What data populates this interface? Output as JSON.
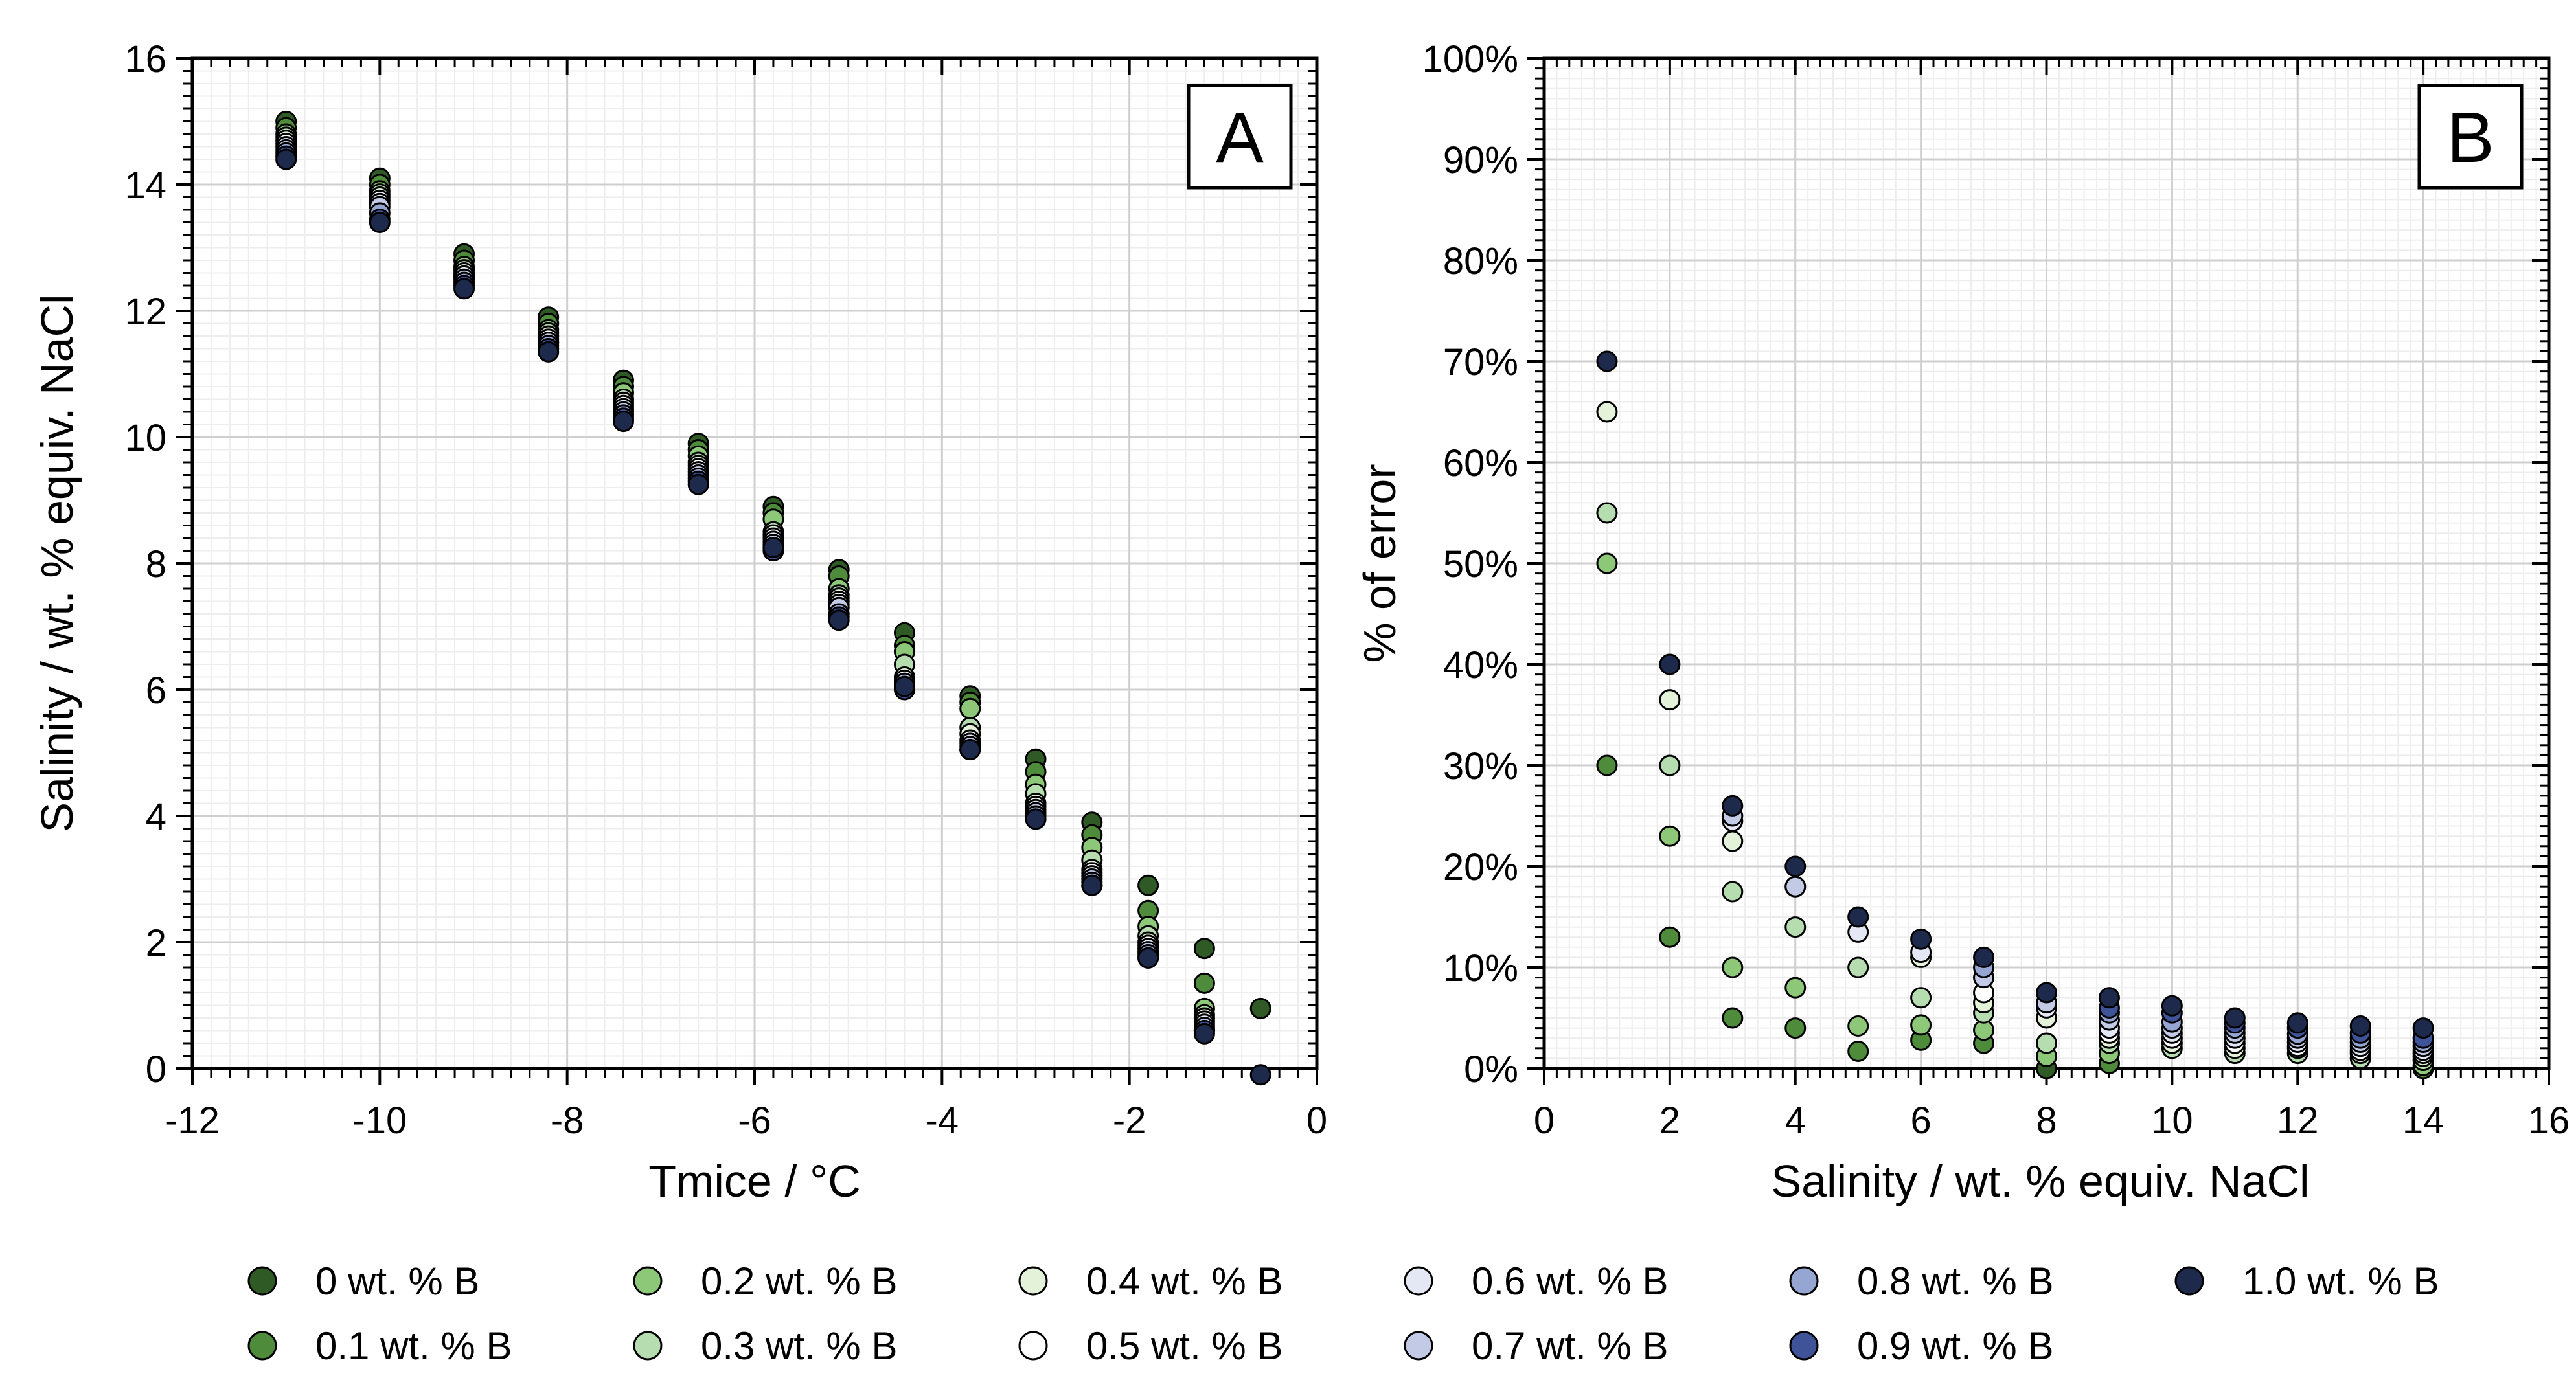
{
  "colors": {
    "0 wt. % B": "#2f5a26",
    "0.1 wt. % B": "#4e8b3a",
    "0.2 wt. % B": "#8cc878",
    "0.3 wt. % B": "#b6ddb0",
    "0.4 wt. % B": "#e3f2d9",
    "0.5 wt. % B": "#ffffff",
    "0.6 wt. % B": "#e4e8f4",
    "0.7 wt. % B": "#c2cae6",
    "0.8 wt. % B": "#96a6d2",
    "0.9 wt. % B": "#3e5398",
    "1.0 wt. % B": "#1e2a4c"
  },
  "legend": {
    "columns": [
      [
        "0 wt. % B",
        "0.1 wt. % B"
      ],
      [
        "0.2 wt. % B",
        "0.3 wt. % B"
      ],
      [
        "0.4 wt. % B",
        "0.5 wt. % B"
      ],
      [
        "0.6 wt. % B",
        "0.7 wt. % B"
      ],
      [
        "0.8 wt. % B",
        "0.9 wt. % B"
      ],
      [
        "1.0 wt. % B"
      ]
    ]
  },
  "chart_data": [
    {
      "type": "scatter",
      "panel": "A",
      "title": "",
      "xlabel": "Tmice / °C",
      "ylabel": "Salinity / wt. % equiv. NaCl",
      "xlim": [
        -12,
        0
      ],
      "ylim": [
        0,
        16
      ],
      "xticks": [
        "-12",
        "-10",
        "-8",
        "-6",
        "-4",
        "-2",
        "0"
      ],
      "yticks": [
        "0",
        "2",
        "4",
        "6",
        "8",
        "10",
        "12",
        "14",
        "16"
      ],
      "grid": true,
      "series": [
        {
          "name": "0 wt. % B",
          "x": [
            -11.0,
            -10.0,
            -9.1,
            -8.2,
            -7.4,
            -6.6,
            -5.8,
            -5.1,
            -4.4,
            -3.7,
            -3.0,
            -2.4,
            -1.8,
            -1.2,
            -0.6
          ],
          "y": [
            15.0,
            14.1,
            12.9,
            11.9,
            10.9,
            9.9,
            8.9,
            7.9,
            6.9,
            5.9,
            4.9,
            3.9,
            2.9,
            1.9,
            0.95
          ]
        },
        {
          "name": "0.1 wt. % B",
          "x": [
            -11.0,
            -10.0,
            -9.1,
            -8.2,
            -7.4,
            -6.6,
            -5.8,
            -5.1,
            -4.4,
            -3.7,
            -3.0,
            -2.4,
            -1.8,
            -1.2
          ],
          "y": [
            14.9,
            14.0,
            12.8,
            11.8,
            10.8,
            9.8,
            8.8,
            7.8,
            6.7,
            5.8,
            4.7,
            3.7,
            2.5,
            1.35
          ]
        },
        {
          "name": "0.2 wt. % B",
          "x": [
            -11.0,
            -10.0,
            -9.1,
            -8.2,
            -7.4,
            -6.6,
            -5.8,
            -5.1,
            -4.4,
            -3.7,
            -3.0,
            -2.4,
            -1.8,
            -1.2
          ],
          "y": [
            14.8,
            13.9,
            12.7,
            11.7,
            10.7,
            9.7,
            8.7,
            7.6,
            6.6,
            5.7,
            4.5,
            3.5,
            2.25,
            0.95
          ]
        },
        {
          "name": "0.3 wt. % B",
          "x": [
            -11.0,
            -10.0,
            -9.1,
            -8.2,
            -7.4,
            -6.6,
            -5.8,
            -5.1,
            -4.4,
            -3.7,
            -3.0,
            -2.4,
            -1.8,
            -1.2
          ],
          "y": [
            14.75,
            13.85,
            12.65,
            11.65,
            10.6,
            9.6,
            8.5,
            7.5,
            6.4,
            5.4,
            4.35,
            3.3,
            2.1,
            0.85
          ]
        },
        {
          "name": "0.4 wt. % B",
          "x": [
            -11.0,
            -10.0,
            -9.1,
            -8.2,
            -7.4,
            -6.6,
            -5.8,
            -5.1,
            -4.4,
            -3.7,
            -3.0,
            -2.4,
            -1.8,
            -1.2
          ],
          "y": [
            14.7,
            13.8,
            12.6,
            11.6,
            10.55,
            9.55,
            8.45,
            7.45,
            6.2,
            5.3,
            4.2,
            3.15,
            2.0,
            0.8
          ]
        },
        {
          "name": "0.5 wt. % B",
          "x": [
            -11.0,
            -10.0,
            -9.1,
            -8.2,
            -7.4,
            -6.6,
            -5.8,
            -5.1,
            -4.4,
            -3.7,
            -3.0,
            -2.4,
            -1.8,
            -1.2
          ],
          "y": [
            14.65,
            13.75,
            12.55,
            11.55,
            10.5,
            9.5,
            8.4,
            7.4,
            6.15,
            5.2,
            4.15,
            3.1,
            1.95,
            0.75
          ]
        },
        {
          "name": "0.6 wt. % B",
          "x": [
            -11.0,
            -10.0,
            -9.1,
            -8.2,
            -7.4,
            -6.6,
            -5.8,
            -5.1,
            -4.4,
            -3.7,
            -3.0,
            -2.4,
            -1.8,
            -1.2
          ],
          "y": [
            14.6,
            13.7,
            12.55,
            11.5,
            10.45,
            9.45,
            8.35,
            7.35,
            6.1,
            5.15,
            4.1,
            3.05,
            1.9,
            0.7
          ]
        },
        {
          "name": "0.7 wt. % B",
          "x": [
            -11.0,
            -10.0,
            -9.1,
            -8.2,
            -7.4,
            -6.6,
            -5.8,
            -5.1,
            -4.4,
            -3.7,
            -3.0,
            -2.4,
            -1.8,
            -1.2
          ],
          "y": [
            14.55,
            13.65,
            12.5,
            11.5,
            10.4,
            9.4,
            8.3,
            7.3,
            6.1,
            5.1,
            4.05,
            3.0,
            1.85,
            0.65
          ]
        },
        {
          "name": "0.8 wt. % B",
          "x": [
            -11.0,
            -10.0,
            -9.1,
            -8.2,
            -7.4,
            -6.6,
            -5.8,
            -5.1,
            -4.4,
            -3.7,
            -3.0,
            -2.4,
            -1.8,
            -1.2
          ],
          "y": [
            14.5,
            13.55,
            12.45,
            11.45,
            10.35,
            9.35,
            8.25,
            7.2,
            6.05,
            5.05,
            4.0,
            2.95,
            1.8,
            0.6
          ]
        },
        {
          "name": "0.9 wt. % B",
          "x": [
            -11.0,
            -10.0,
            -9.1,
            -8.2,
            -7.4,
            -6.6,
            -5.8,
            -5.1,
            -4.4,
            -3.7,
            -3.0,
            -2.4,
            -1.8,
            -1.2
          ],
          "y": [
            14.45,
            13.45,
            12.4,
            11.4,
            10.3,
            9.3,
            8.2,
            7.15,
            6.0,
            5.05,
            3.95,
            2.9,
            1.75,
            0.6
          ]
        },
        {
          "name": "1.0 wt. % B",
          "x": [
            -11.0,
            -10.0,
            -9.1,
            -8.2,
            -7.4,
            -6.6,
            -5.8,
            -5.1,
            -4.4,
            -3.7,
            -3.0,
            -2.4,
            -1.8,
            -1.2,
            -0.6
          ],
          "y": [
            14.4,
            13.4,
            12.35,
            11.35,
            10.25,
            9.25,
            8.25,
            7.1,
            6.05,
            5.05,
            3.95,
            2.9,
            1.75,
            0.55,
            -0.1
          ]
        }
      ]
    },
    {
      "type": "scatter",
      "panel": "B",
      "title": "",
      "xlabel": "Salinity / wt. % equiv. NaCl",
      "ylabel": "% of error",
      "xlim": [
        0,
        16
      ],
      "ylim": [
        0,
        100
      ],
      "xticks": [
        "0",
        "2",
        "4",
        "6",
        "8",
        "10",
        "12",
        "14",
        "16"
      ],
      "yticks": [
        "0%",
        "10%",
        "20%",
        "30%",
        "40%",
        "50%",
        "60%",
        "70%",
        "80%",
        "90%",
        "100%"
      ],
      "grid": true,
      "series": [
        {
          "name": "0 wt. % B",
          "x": [
            8
          ],
          "y": [
            0
          ]
        },
        {
          "name": "0.1 wt. % B",
          "x": [
            1,
            2,
            3,
            4,
            5,
            6,
            7,
            9,
            14
          ],
          "y": [
            30,
            13,
            5,
            4,
            1.7,
            2.8,
            2.5,
            0.5,
            0
          ]
        },
        {
          "name": "0.2 wt. % B",
          "x": [
            1,
            2,
            3,
            4,
            5,
            6,
            7,
            8,
            9,
            14
          ],
          "y": [
            50,
            23,
            10,
            8,
            4.2,
            4.3,
            3.8,
            1.2,
            1.5,
            0.3
          ]
        },
        {
          "name": "0.3 wt. % B",
          "x": [
            1,
            2,
            3,
            4,
            5,
            6,
            7,
            8,
            9,
            10,
            11,
            12,
            13,
            14
          ],
          "y": [
            55,
            30,
            17.5,
            14,
            10,
            7,
            5.5,
            2.5,
            2.5,
            2,
            1.5,
            1.5,
            1,
            0.8
          ]
        },
        {
          "name": "0.4 wt. % B",
          "x": [
            1,
            2,
            3,
            4,
            6,
            7,
            8,
            9,
            10,
            11,
            12,
            13,
            14
          ],
          "y": [
            65,
            36.5,
            22.5,
            18,
            11,
            6.5,
            5,
            3,
            2.5,
            2,
            2,
            1.5,
            1.2
          ]
        },
        {
          "name": "0.5 wt. % B",
          "x": [
            7,
            9,
            10,
            11,
            12,
            13,
            14
          ],
          "y": [
            7.5,
            3.5,
            3,
            2.5,
            2.2,
            1.8,
            1.5
          ]
        },
        {
          "name": "0.6 wt. % B",
          "x": [
            3,
            5,
            6,
            8,
            9,
            10,
            11,
            12,
            13,
            14
          ],
          "y": [
            24.5,
            13.5,
            11.5,
            6,
            4,
            3.5,
            3,
            2.6,
            2.2,
            1.8
          ]
        },
        {
          "name": "0.7 wt. % B",
          "x": [
            3,
            4,
            7,
            8,
            9,
            10,
            11,
            12,
            13,
            14
          ],
          "y": [
            25,
            18,
            9,
            6.5,
            4.8,
            4,
            3.5,
            3,
            2.6,
            2.2
          ]
        },
        {
          "name": "0.8 wt. % B",
          "x": [
            7,
            9,
            10,
            11,
            12,
            13,
            14
          ],
          "y": [
            10,
            5.5,
            4.6,
            4,
            3.4,
            3,
            2.6
          ]
        },
        {
          "name": "0.9 wt. % B",
          "x": [
            9,
            10,
            11,
            12,
            13,
            14
          ],
          "y": [
            6,
            5.5,
            4.5,
            4,
            3.5,
            3
          ]
        },
        {
          "name": "1.0 wt. % B",
          "x": [
            1,
            2,
            3,
            4,
            5,
            6,
            7,
            8,
            9,
            10,
            11,
            12,
            13,
            14
          ],
          "y": [
            70,
            40,
            26,
            20,
            15,
            12.8,
            11,
            7.5,
            7,
            6.2,
            5,
            4.5,
            4.2,
            4
          ]
        }
      ]
    }
  ]
}
